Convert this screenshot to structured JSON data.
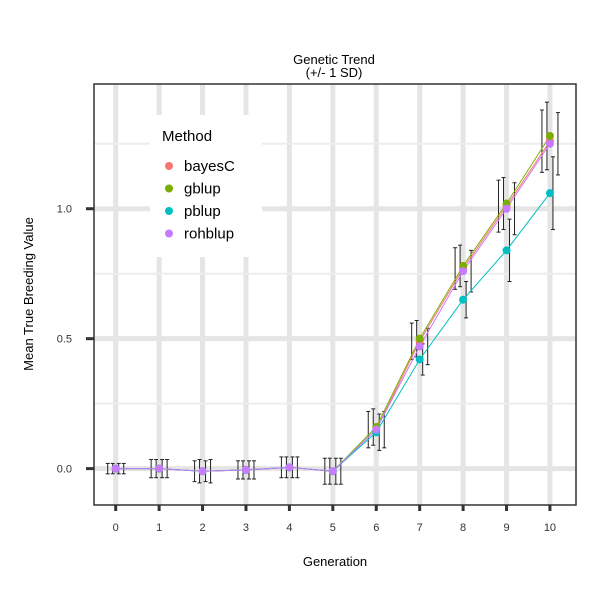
{
  "chart_data": {
    "type": "line",
    "title": "Genetic Trend",
    "subtitle": "(+/- 1 SD)",
    "xlabel": "Generation",
    "ylabel": "Mean True Breeding Value",
    "x": [
      0,
      1,
      2,
      3,
      4,
      5,
      6,
      7,
      8,
      9,
      10
    ],
    "x_tick_labels": [
      "0",
      "1",
      "2",
      "3",
      "4",
      "5",
      "6",
      "7",
      "8",
      "9",
      "10"
    ],
    "y_ticks": [
      0.0,
      0.5,
      1.0
    ],
    "y_tick_labels": [
      "0.0",
      "0.5",
      "1.0"
    ],
    "xlim": [
      -0.5,
      10.6
    ],
    "ylim": [
      -0.14,
      1.48
    ],
    "grid": true,
    "error_bars": "+/- 1 SD",
    "legend": {
      "title": "Method",
      "placement": "top-left"
    },
    "series": [
      {
        "name": "bayesC",
        "color": "#F8766D",
        "values": [
          0.0,
          0.0,
          -0.01,
          -0.005,
          0.005,
          -0.01,
          0.15,
          0.49,
          0.77,
          1.01,
          1.26
        ],
        "sd": [
          0.02,
          0.035,
          0.04,
          0.035,
          0.04,
          0.05,
          0.07,
          0.07,
          0.08,
          0.1,
          0.12
        ]
      },
      {
        "name": "gblup",
        "color": "#7CAE00",
        "values": [
          0.0,
          0.0,
          -0.01,
          -0.005,
          0.005,
          -0.01,
          0.16,
          0.5,
          0.78,
          1.02,
          1.28
        ],
        "sd": [
          0.02,
          0.035,
          0.045,
          0.035,
          0.04,
          0.05,
          0.07,
          0.07,
          0.08,
          0.1,
          0.13
        ]
      },
      {
        "name": "pblup",
        "color": "#00BFC4",
        "values": [
          0.0,
          0.0,
          -0.01,
          -0.005,
          0.005,
          -0.01,
          0.14,
          0.42,
          0.65,
          0.84,
          1.06
        ],
        "sd": [
          0.02,
          0.035,
          0.04,
          0.035,
          0.04,
          0.05,
          0.07,
          0.06,
          0.07,
          0.12,
          0.14
        ]
      },
      {
        "name": "rohblup",
        "color": "#C77CFF",
        "values": [
          0.0,
          0.0,
          -0.01,
          -0.005,
          0.005,
          -0.01,
          0.15,
          0.47,
          0.76,
          1.0,
          1.25
        ],
        "sd": [
          0.02,
          0.035,
          0.045,
          0.035,
          0.04,
          0.05,
          0.07,
          0.07,
          0.08,
          0.1,
          0.12
        ]
      }
    ]
  }
}
